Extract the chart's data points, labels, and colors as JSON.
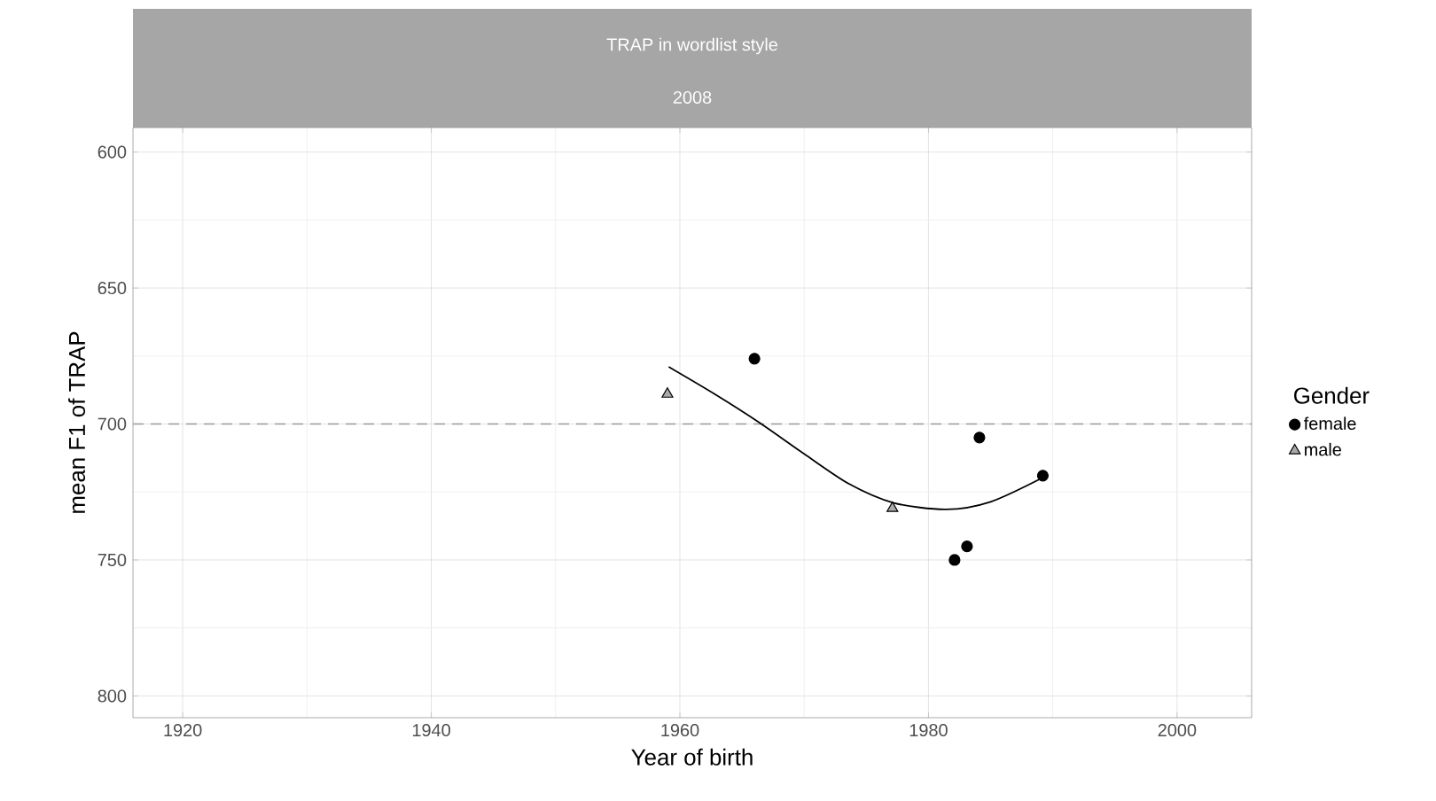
{
  "chart_data": {
    "type": "scatter",
    "title": "TRAP in wordlist style",
    "subtitle": "2008",
    "xlabel": "Year of birth",
    "ylabel": "mean F1 of TRAP",
    "legend_title": "Gender",
    "xlim": [
      1916,
      2006
    ],
    "xticks": [
      1920,
      1940,
      1960,
      1980,
      2000
    ],
    "ylim": [
      808,
      591
    ],
    "yticks": [
      600,
      650,
      700,
      750,
      800
    ],
    "grid": true,
    "legend": "right",
    "ref_lines": [
      {
        "axis": "y",
        "value": 700,
        "color": "#999999",
        "line_style": "dashed"
      }
    ],
    "series": [
      {
        "name": "female",
        "color": "#000000",
        "marker": "circle",
        "x": [
          1966.0,
          1984.1,
          1989.2,
          1983.1,
          1982.1
        ],
        "values": [
          676,
          705,
          719,
          745,
          750
        ]
      },
      {
        "name": "male",
        "color": "#aaaaaa",
        "marker": "triangle",
        "x": [
          1959.0,
          1977.1
        ],
        "values": [
          689,
          731
        ]
      },
      {
        "type": "line",
        "color": "#000000",
        "marker": "none",
        "x": [
          1959.1,
          1962.8,
          1966.4,
          1970.0,
          1973.6,
          1977.2,
          1981.4,
          1985.0,
          1989.2
        ],
        "values": [
          679,
          689,
          699.5,
          711,
          722,
          729,
          731.4,
          728.6,
          719.7
        ]
      }
    ]
  }
}
